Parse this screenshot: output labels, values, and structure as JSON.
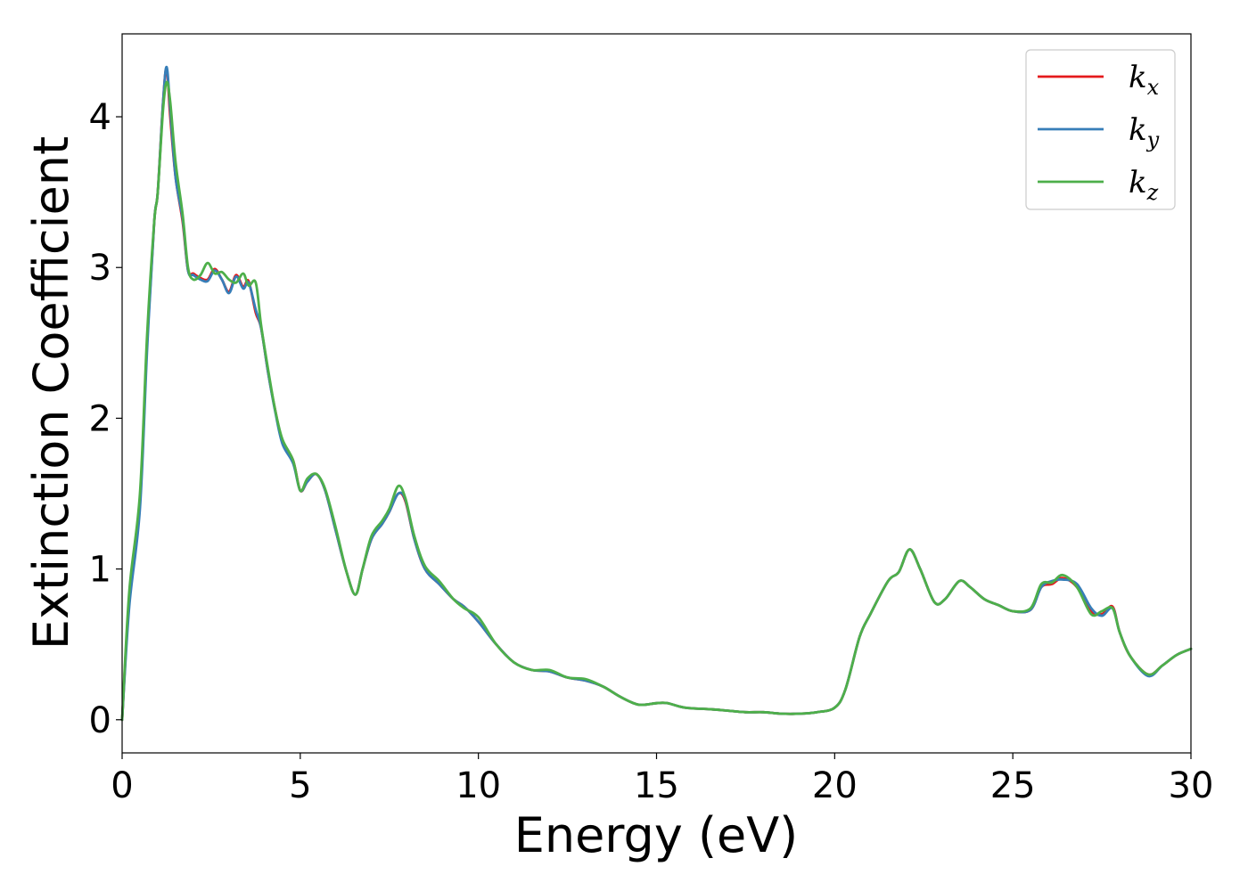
{
  "chart_data": {
    "type": "line",
    "xlabel": "Energy (eV)",
    "ylabel": "Extinction Coefficient",
    "xlim": [
      0,
      30
    ],
    "ylim": [
      -0.22,
      4.55
    ],
    "xticks": [
      0,
      5,
      10,
      15,
      20,
      25,
      30
    ],
    "yticks": [
      0,
      1,
      2,
      3,
      4
    ],
    "grid": false,
    "legend_position": "top-right",
    "series": [
      {
        "name": "k_x",
        "legend_base": "k",
        "legend_sub": "x",
        "color": "#e41a1c",
        "x": [
          0,
          0.2,
          0.5,
          0.7,
          0.9,
          1.0,
          1.15,
          1.25,
          1.35,
          1.5,
          1.7,
          1.85,
          2.0,
          2.2,
          2.4,
          2.6,
          2.8,
          3.0,
          3.2,
          3.4,
          3.55,
          3.75,
          3.9,
          4.1,
          4.3,
          4.5,
          4.8,
          5.0,
          5.2,
          5.45,
          5.7,
          6.0,
          6.3,
          6.55,
          6.75,
          7.0,
          7.3,
          7.5,
          7.75,
          7.95,
          8.2,
          8.5,
          8.9,
          9.3,
          9.6,
          10.0,
          10.5,
          11.0,
          11.5,
          12.0,
          12.5,
          13.0,
          13.5,
          14.0,
          14.5,
          15.0,
          15.3,
          15.8,
          16.5,
          17.0,
          17.5,
          18.0,
          18.5,
          19.0,
          19.5,
          20.0,
          20.3,
          20.7,
          21.0,
          21.5,
          21.8,
          22.1,
          22.4,
          22.8,
          23.1,
          23.5,
          23.8,
          24.2,
          24.6,
          25.0,
          25.5,
          25.8,
          26.1,
          26.4,
          26.8,
          27.2,
          27.5,
          27.8,
          28.0,
          28.3,
          28.8,
          29.2,
          29.6,
          30.0
        ],
        "y": [
          0.0,
          0.8,
          1.45,
          2.5,
          3.3,
          3.5,
          4.1,
          4.32,
          4.0,
          3.6,
          3.3,
          2.98,
          2.96,
          2.93,
          2.92,
          2.99,
          2.92,
          2.84,
          2.95,
          2.87,
          2.91,
          2.7,
          2.6,
          2.3,
          2.05,
          1.85,
          1.72,
          1.52,
          1.58,
          1.63,
          1.52,
          1.25,
          0.98,
          0.83,
          1.0,
          1.2,
          1.3,
          1.38,
          1.5,
          1.45,
          1.2,
          1.0,
          0.9,
          0.8,
          0.75,
          0.65,
          0.5,
          0.38,
          0.33,
          0.32,
          0.28,
          0.26,
          0.22,
          0.15,
          0.1,
          0.11,
          0.11,
          0.08,
          0.07,
          0.06,
          0.05,
          0.05,
          0.04,
          0.04,
          0.05,
          0.08,
          0.2,
          0.55,
          0.7,
          0.92,
          0.98,
          1.13,
          1.0,
          0.78,
          0.8,
          0.92,
          0.88,
          0.8,
          0.76,
          0.72,
          0.73,
          0.88,
          0.9,
          0.94,
          0.88,
          0.72,
          0.7,
          0.75,
          0.58,
          0.42,
          0.3,
          0.36,
          0.43,
          0.47
        ]
      },
      {
        "name": "k_y",
        "legend_base": "k",
        "legend_sub": "y",
        "color": "#377eb8",
        "x": [
          0,
          0.2,
          0.5,
          0.7,
          0.9,
          1.0,
          1.15,
          1.25,
          1.35,
          1.5,
          1.7,
          1.85,
          2.0,
          2.2,
          2.4,
          2.6,
          2.8,
          3.0,
          3.2,
          3.4,
          3.55,
          3.75,
          3.9,
          4.1,
          4.3,
          4.5,
          4.8,
          5.0,
          5.2,
          5.45,
          5.7,
          6.0,
          6.3,
          6.55,
          6.75,
          7.0,
          7.3,
          7.5,
          7.75,
          7.95,
          8.2,
          8.5,
          8.9,
          9.3,
          9.6,
          10.0,
          10.5,
          11.0,
          11.5,
          12.0,
          12.5,
          13.0,
          13.5,
          14.0,
          14.5,
          15.0,
          15.3,
          15.8,
          16.5,
          17.0,
          17.5,
          18.0,
          18.5,
          19.0,
          19.5,
          20.0,
          20.3,
          20.7,
          21.0,
          21.5,
          21.8,
          22.1,
          22.4,
          22.8,
          23.1,
          23.5,
          23.8,
          24.2,
          24.6,
          25.0,
          25.5,
          25.8,
          26.1,
          26.4,
          26.8,
          27.2,
          27.5,
          27.8,
          28.0,
          28.3,
          28.8,
          29.2,
          29.6,
          30.0
        ],
        "y": [
          0.0,
          0.75,
          1.4,
          2.45,
          3.3,
          3.5,
          4.1,
          4.33,
          4.05,
          3.6,
          3.32,
          2.98,
          2.95,
          2.92,
          2.91,
          2.98,
          2.92,
          2.83,
          2.94,
          2.86,
          2.9,
          2.72,
          2.6,
          2.3,
          2.04,
          1.83,
          1.7,
          1.52,
          1.58,
          1.63,
          1.52,
          1.25,
          0.98,
          0.83,
          1.0,
          1.2,
          1.3,
          1.38,
          1.5,
          1.46,
          1.2,
          1.0,
          0.9,
          0.8,
          0.75,
          0.65,
          0.5,
          0.38,
          0.33,
          0.32,
          0.28,
          0.26,
          0.22,
          0.15,
          0.1,
          0.11,
          0.11,
          0.08,
          0.07,
          0.06,
          0.05,
          0.05,
          0.04,
          0.04,
          0.05,
          0.08,
          0.2,
          0.55,
          0.7,
          0.92,
          0.98,
          1.13,
          1.0,
          0.78,
          0.8,
          0.92,
          0.88,
          0.8,
          0.76,
          0.72,
          0.73,
          0.88,
          0.92,
          0.93,
          0.9,
          0.74,
          0.69,
          0.74,
          0.58,
          0.42,
          0.29,
          0.36,
          0.43,
          0.47
        ]
      },
      {
        "name": "k_z",
        "legend_base": "k",
        "legend_sub": "z",
        "color": "#4daf4a",
        "x": [
          0,
          0.2,
          0.5,
          0.7,
          0.9,
          1.0,
          1.15,
          1.25,
          1.35,
          1.5,
          1.7,
          1.85,
          2.0,
          2.2,
          2.4,
          2.6,
          2.8,
          3.0,
          3.2,
          3.4,
          3.55,
          3.75,
          3.9,
          4.1,
          4.3,
          4.5,
          4.8,
          5.0,
          5.2,
          5.45,
          5.7,
          6.0,
          6.3,
          6.55,
          6.75,
          7.0,
          7.3,
          7.5,
          7.75,
          7.95,
          8.2,
          8.5,
          8.9,
          9.3,
          9.6,
          10.0,
          10.5,
          11.0,
          11.5,
          12.0,
          12.5,
          13.0,
          13.5,
          14.0,
          14.5,
          15.0,
          15.3,
          15.8,
          16.5,
          17.0,
          17.5,
          18.0,
          18.5,
          19.0,
          19.5,
          20.0,
          20.3,
          20.7,
          21.0,
          21.5,
          21.8,
          22.1,
          22.4,
          22.8,
          23.1,
          23.5,
          23.8,
          24.2,
          24.6,
          25.0,
          25.5,
          25.8,
          26.1,
          26.4,
          26.8,
          27.2,
          27.5,
          27.8,
          28.0,
          28.3,
          28.8,
          29.2,
          29.6,
          30.0
        ],
        "y": [
          0.0,
          0.85,
          1.5,
          2.55,
          3.3,
          3.5,
          4.05,
          4.23,
          4.1,
          3.7,
          3.35,
          3.0,
          2.92,
          2.95,
          3.03,
          2.96,
          2.97,
          2.92,
          2.9,
          2.96,
          2.88,
          2.9,
          2.62,
          2.32,
          2.05,
          1.86,
          1.72,
          1.52,
          1.6,
          1.63,
          1.53,
          1.27,
          0.98,
          0.83,
          1.0,
          1.22,
          1.32,
          1.4,
          1.55,
          1.47,
          1.22,
          1.02,
          0.92,
          0.8,
          0.74,
          0.68,
          0.5,
          0.38,
          0.33,
          0.33,
          0.28,
          0.27,
          0.22,
          0.15,
          0.1,
          0.11,
          0.11,
          0.08,
          0.07,
          0.06,
          0.05,
          0.05,
          0.04,
          0.04,
          0.05,
          0.08,
          0.2,
          0.55,
          0.7,
          0.92,
          0.98,
          1.13,
          1.0,
          0.78,
          0.8,
          0.92,
          0.88,
          0.8,
          0.76,
          0.72,
          0.74,
          0.9,
          0.91,
          0.96,
          0.88,
          0.7,
          0.72,
          0.74,
          0.58,
          0.42,
          0.3,
          0.36,
          0.43,
          0.47
        ]
      }
    ]
  }
}
